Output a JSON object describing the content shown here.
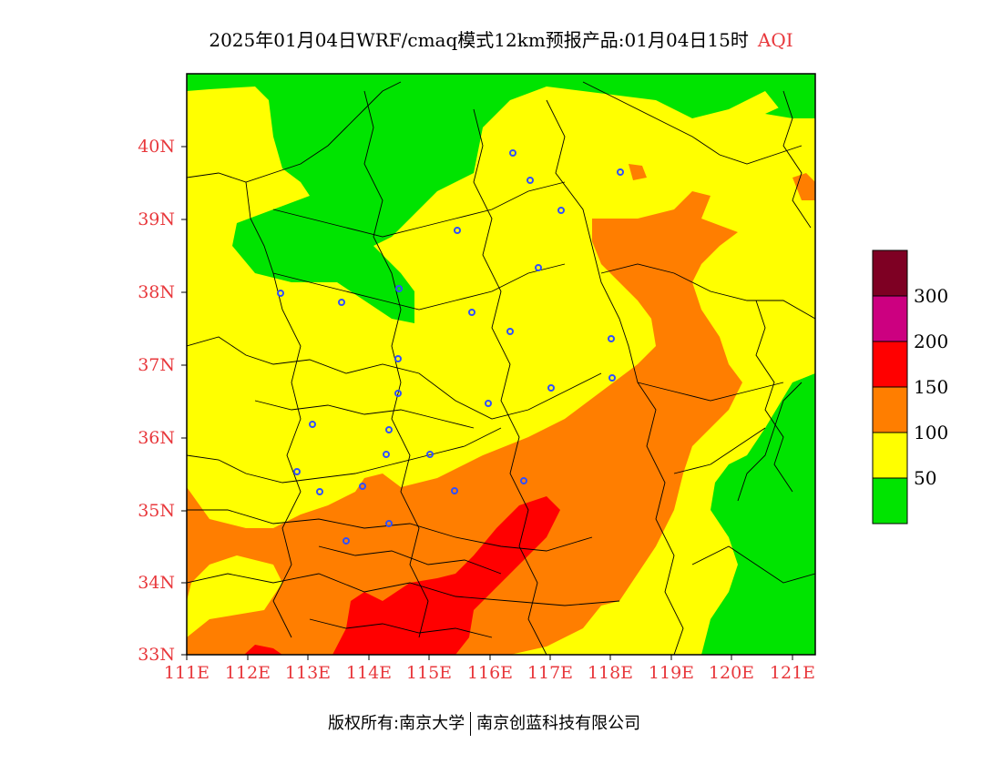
{
  "title": {
    "main": "2025年01月04日WRF/cmaq模式12km预报产品:01月04日15时",
    "variable": "AQI"
  },
  "axes": {
    "y_ticks": [
      "40N",
      "39N",
      "38N",
      "37N",
      "36N",
      "35N",
      "34N",
      "33N"
    ],
    "x_ticks": [
      "111E",
      "112E",
      "113E",
      "114E",
      "115E",
      "116E",
      "117E",
      "118E",
      "119E",
      "120E",
      "121E"
    ],
    "lon_range": [
      111,
      121.4
    ],
    "lat_range": [
      33,
      40.95
    ]
  },
  "legend": {
    "colors": [
      "#00e400",
      "#ffff00",
      "#ff7e00",
      "#ff0000",
      "#cc0080",
      "#7e0023"
    ],
    "labels": [
      "50",
      "100",
      "150",
      "200",
      "300"
    ]
  },
  "footer": {
    "left": "版权所有:南京大学",
    "right": "南京创蓝科技有限公司"
  },
  "colors": {
    "axis_label": "#e8383c",
    "city_marker": "#3050ff"
  }
}
